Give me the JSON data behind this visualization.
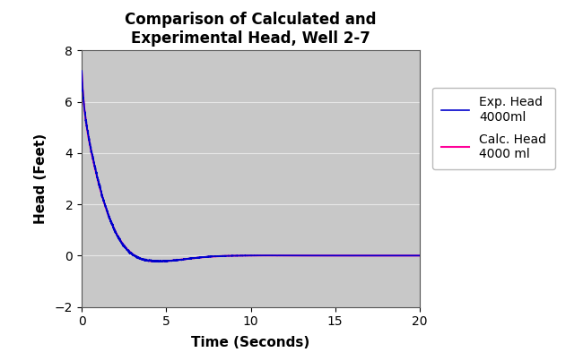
{
  "title_line1": "Comparison of Calculated and",
  "title_line2": "Experimental Head, Well 2-7",
  "xlabel": "Time (Seconds)",
  "ylabel": "Head (Feet)",
  "xlim": [
    0,
    20
  ],
  "ylim": [
    -2,
    8
  ],
  "xticks": [
    0,
    5,
    10,
    15,
    20
  ],
  "yticks": [
    -2,
    0,
    2,
    4,
    6,
    8
  ],
  "plot_bg_color": "#c8c8c8",
  "fig_bg_color": "#ffffff",
  "exp_color": "#0000cc",
  "calc_color": "#ff0099",
  "legend_labels": [
    "Exp. Head\n4000ml",
    "Calc. Head\n4000 ml"
  ],
  "title_fontsize": 12,
  "axis_label_fontsize": 11,
  "tick_fontsize": 10,
  "legend_fontsize": 10,
  "exp_lw": 1.2,
  "calc_lw": 1.5
}
